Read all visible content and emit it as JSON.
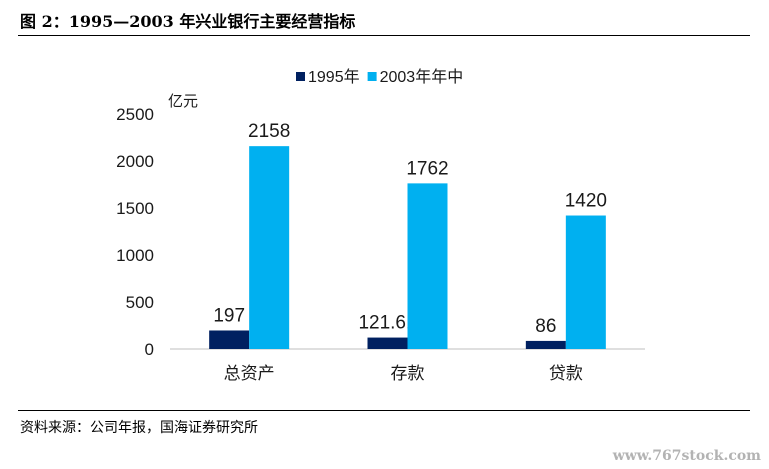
{
  "figure": {
    "title": "图 2：1995—2003 年兴业银行主要经营指标",
    "source": "资料来源：公司年报，国海证券研究所",
    "watermark": "www.767stock.com"
  },
  "chart_data": {
    "type": "bar",
    "title": "",
    "xlabel": "",
    "ylabel": "亿元",
    "ylim": [
      0,
      2500
    ],
    "yticks": [
      0,
      500,
      1000,
      1500,
      2000,
      2500
    ],
    "categories": [
      "总资产",
      "存款",
      "贷款"
    ],
    "series": [
      {
        "name": "1995年",
        "color": "#002060",
        "values": [
          197,
          121.61,
          86
        ],
        "labels": [
          "197",
          "121.61",
          "86"
        ]
      },
      {
        "name": "2003年年中",
        "color": "#00B0F0",
        "values": [
          2158,
          1762,
          1420
        ],
        "labels": [
          "2158",
          "1762",
          "1420"
        ]
      }
    ],
    "legend_position": "top",
    "grid": false
  }
}
